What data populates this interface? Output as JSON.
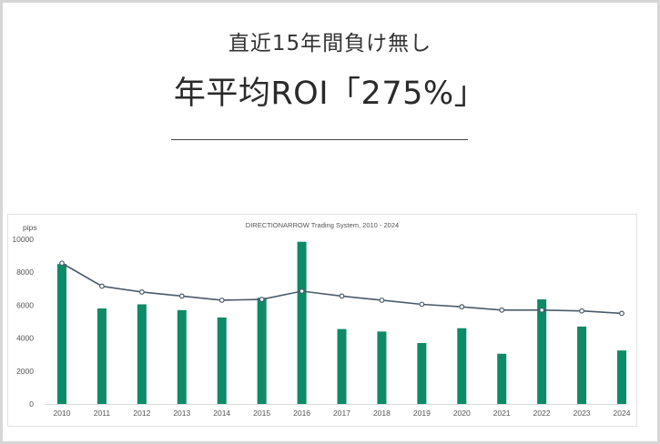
{
  "header": {
    "subtitle": "直近15年間負け無し",
    "headline": "年平均ROI「275%」"
  },
  "colors": {
    "bar": "#0f8a66",
    "line": "#4a5a6a",
    "marker_fill": "#ffffff",
    "grid": "#dddddd"
  },
  "chart_data": {
    "type": "bar",
    "title": "DIRECTIONARROW   Trading System, 2010 - 2024",
    "ylabel": "pips",
    "xlabel": "",
    "ylim": [
      0,
      10000
    ],
    "yticks": [
      "0",
      "2000",
      "4000",
      "6000",
      "8000",
      "10000"
    ],
    "categories": [
      "2010",
      "2011",
      "2012",
      "2013",
      "2014",
      "2015",
      "2016",
      "2017",
      "2018",
      "2019",
      "2020",
      "2021",
      "2022",
      "2023",
      "2024"
    ],
    "series": [
      {
        "kind": "bar",
        "values": [
          8500,
          5800,
          6050,
          5700,
          5250,
          6450,
          9850,
          4550,
          4400,
          3700,
          4600,
          3050,
          6350,
          4700,
          3250
        ]
      },
      {
        "kind": "line",
        "values": [
          8550,
          7150,
          6800,
          6550,
          6300,
          6350,
          6850,
          6550,
          6300,
          6050,
          5900,
          5700,
          5700,
          5650,
          5500
        ]
      }
    ],
    "grid": false,
    "legend": "none"
  }
}
